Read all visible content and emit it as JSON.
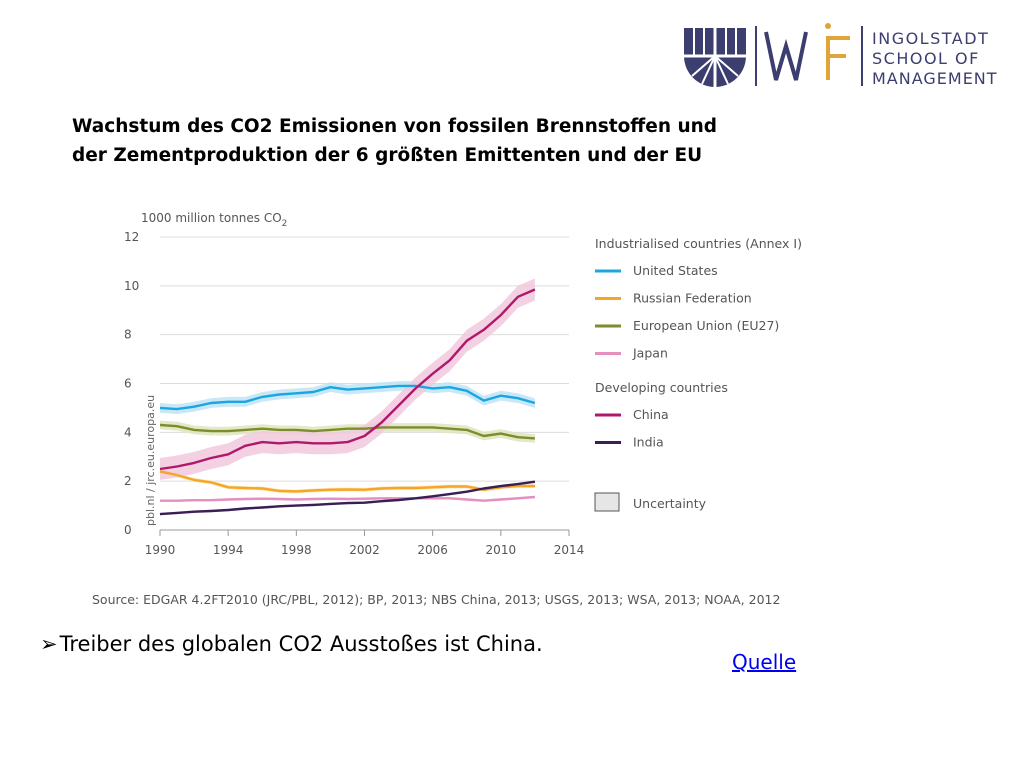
{
  "logo": {
    "line1": "INGOLSTADT",
    "line2": "SCHOOL OF",
    "line3": "MANAGEMENT",
    "brand_color": "#3b3e6e",
    "accent_color": "#e0a53a"
  },
  "slide": {
    "title_line1": "Wachstum des CO2 Emissionen von fossilen Brennstoffen und",
    "title_line2": "der  Zementproduktion der 6 größten Emittenten und der EU",
    "bullet": "Treiber des globalen CO2 Ausstoßes ist China.",
    "bullet_marker": "➢",
    "link": "Quelle"
  },
  "chart_data": {
    "type": "line",
    "ylabel": "1000 million tonnes CO",
    "ylabel_subscript": "2",
    "watermark": "pbl.nl / jrc.eu.europa.eu",
    "source": "Source: EDGAR 4.2FT2010 (JRC/PBL, 2012); BP, 2013; NBS China, 2013; USGS, 2013; WSA, 2013; NOAA, 2012",
    "xlim": [
      1990,
      2014
    ],
    "ylim": [
      0,
      12
    ],
    "xticks": [
      1990,
      1994,
      1998,
      2002,
      2006,
      2010,
      2014
    ],
    "yticks": [
      0,
      2,
      4,
      6,
      8,
      10,
      12
    ],
    "grid": true,
    "legend_position": "right",
    "legend_groups": [
      "Industrialised countries (Annex I)",
      "Developing countries"
    ],
    "uncertainty_label": "Uncertainty",
    "x": [
      1990,
      1991,
      1992,
      1993,
      1994,
      1995,
      1996,
      1997,
      1998,
      1999,
      2000,
      2001,
      2002,
      2003,
      2004,
      2005,
      2006,
      2007,
      2008,
      2009,
      2010,
      2011,
      2012
    ],
    "series": [
      {
        "name": "United States",
        "group": 0,
        "color": "#1aa7e0",
        "band_color": "#bfe3f4",
        "unc": 0.2,
        "values": [
          5.0,
          4.95,
          5.05,
          5.2,
          5.25,
          5.25,
          5.45,
          5.55,
          5.6,
          5.65,
          5.85,
          5.75,
          5.8,
          5.85,
          5.9,
          5.9,
          5.8,
          5.85,
          5.7,
          5.3,
          5.5,
          5.4,
          5.2
        ]
      },
      {
        "name": "Russian Federation",
        "group": 0,
        "color": "#f5a623",
        "band_color": "#fce3b5",
        "unc": 0.08,
        "values": [
          2.4,
          2.25,
          2.05,
          1.95,
          1.75,
          1.72,
          1.7,
          1.6,
          1.58,
          1.62,
          1.65,
          1.66,
          1.65,
          1.7,
          1.72,
          1.72,
          1.75,
          1.78,
          1.78,
          1.65,
          1.75,
          1.8,
          1.8
        ]
      },
      {
        "name": "European Union (EU27)",
        "group": 0,
        "color": "#7d8c2c",
        "band_color": "#dfe4bc",
        "unc": 0.18,
        "values": [
          4.3,
          4.25,
          4.1,
          4.05,
          4.05,
          4.1,
          4.15,
          4.1,
          4.1,
          4.05,
          4.1,
          4.15,
          4.15,
          4.2,
          4.2,
          4.2,
          4.2,
          4.15,
          4.1,
          3.85,
          3.95,
          3.8,
          3.75
        ]
      },
      {
        "name": "Japan",
        "group": 0,
        "color": "#e58fc0",
        "band_color": "#f7d8ea",
        "unc": 0.05,
        "values": [
          1.2,
          1.2,
          1.22,
          1.22,
          1.25,
          1.27,
          1.28,
          1.27,
          1.25,
          1.27,
          1.28,
          1.27,
          1.28,
          1.3,
          1.3,
          1.3,
          1.3,
          1.3,
          1.25,
          1.2,
          1.25,
          1.3,
          1.35
        ]
      },
      {
        "name": "China",
        "group": 1,
        "color": "#b0186b",
        "band_color": "#f1c8dd",
        "unc": 0.45,
        "values": [
          2.5,
          2.6,
          2.75,
          2.95,
          3.1,
          3.45,
          3.6,
          3.55,
          3.6,
          3.55,
          3.55,
          3.6,
          3.85,
          4.4,
          5.1,
          5.8,
          6.4,
          6.95,
          7.75,
          8.2,
          8.8,
          9.55,
          9.85
        ]
      },
      {
        "name": "India",
        "group": 1,
        "color": "#3a1e55",
        "band_color": "#d9d2e2",
        "unc": 0.05,
        "values": [
          0.65,
          0.7,
          0.75,
          0.78,
          0.82,
          0.88,
          0.92,
          0.97,
          1.0,
          1.03,
          1.07,
          1.1,
          1.12,
          1.18,
          1.23,
          1.3,
          1.38,
          1.47,
          1.57,
          1.7,
          1.8,
          1.88,
          1.98
        ]
      }
    ]
  }
}
